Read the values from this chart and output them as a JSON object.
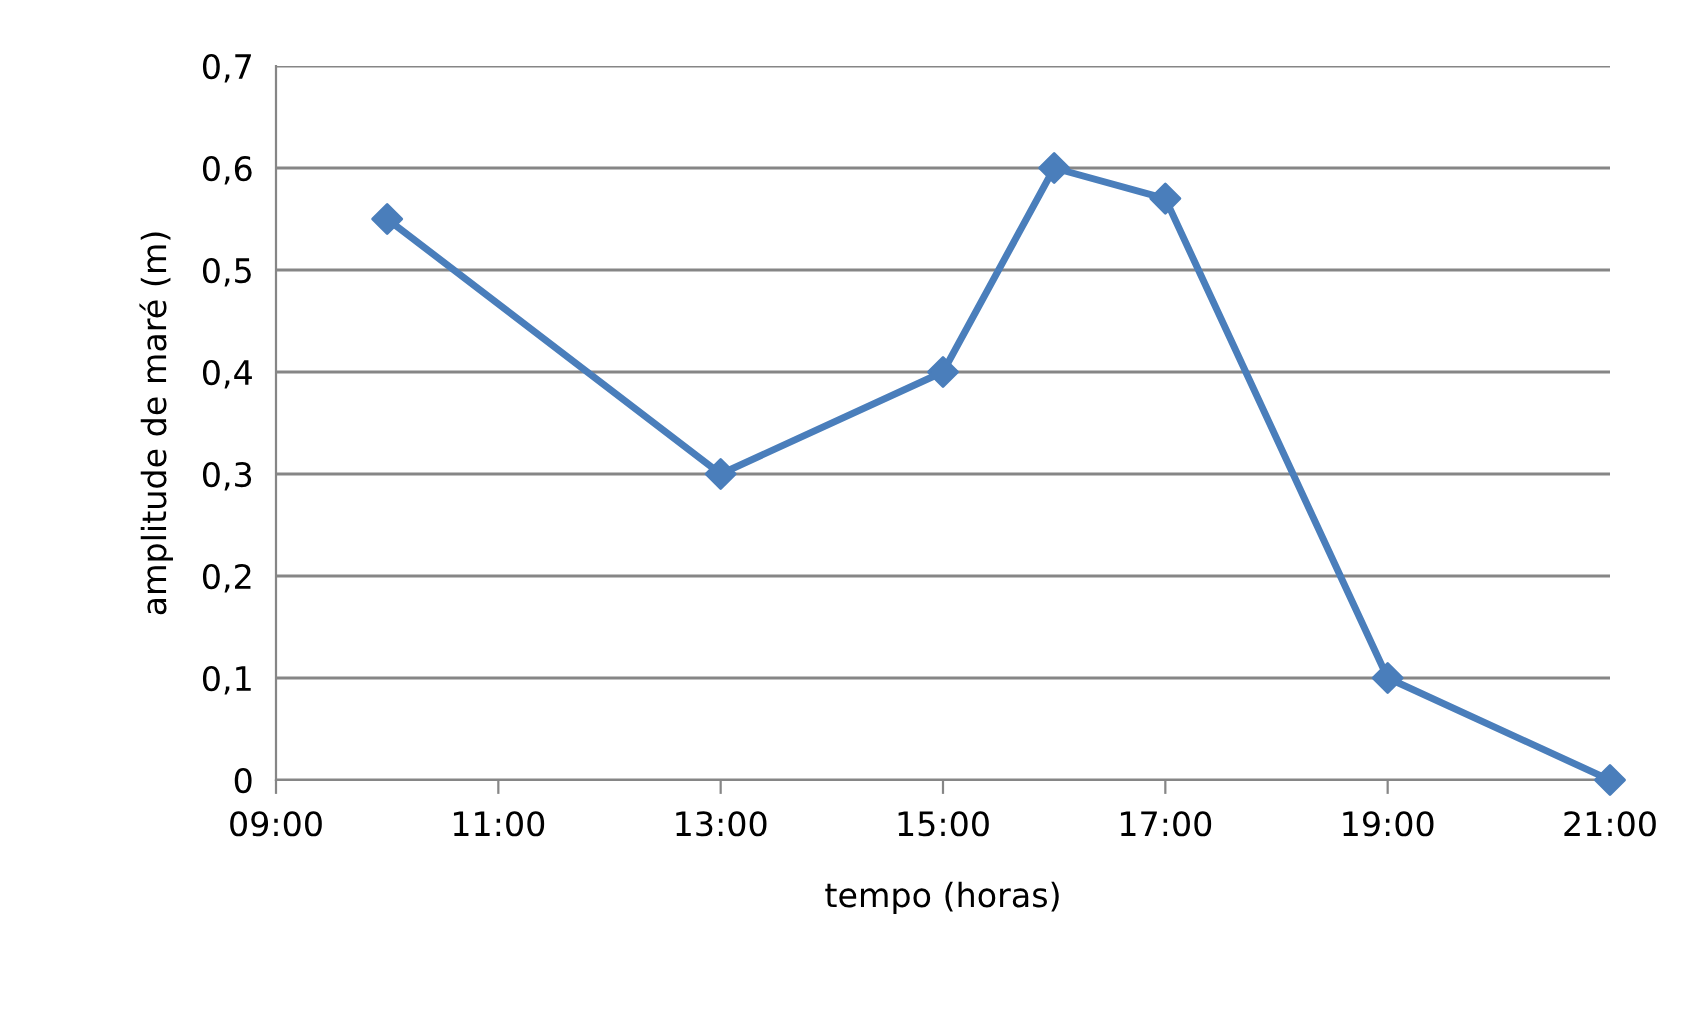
{
  "chart_data": {
    "type": "line",
    "xlabel": "tempo (horas)",
    "ylabel": "amplitude de maré (m)",
    "x": [
      10,
      13,
      15,
      16,
      17,
      19,
      21
    ],
    "series": [
      {
        "color": "#4a7ebb",
        "values": [
          0.55,
          0.3,
          0.4,
          0.6,
          0.57,
          0.1,
          0.0
        ]
      }
    ],
    "xlim": [
      9,
      21
    ],
    "xticks": [
      {
        "value": 9,
        "label": "09:00"
      },
      {
        "value": 11,
        "label": "11:00"
      },
      {
        "value": 13,
        "label": "13:00"
      },
      {
        "value": 15,
        "label": "15:00"
      },
      {
        "value": 17,
        "label": "17:00"
      },
      {
        "value": 19,
        "label": "19:00"
      },
      {
        "value": 21,
        "label": "21:00"
      }
    ],
    "ylim": [
      0,
      0.7
    ],
    "yticks": [
      {
        "value": 0,
        "label": "0"
      },
      {
        "value": 0.1,
        "label": "0,1"
      },
      {
        "value": 0.2,
        "label": "0,2"
      },
      {
        "value": 0.3,
        "label": "0,3"
      },
      {
        "value": 0.4,
        "label": "0,4"
      },
      {
        "value": 0.5,
        "label": "0,5"
      },
      {
        "value": 0.6,
        "label": "0,6"
      },
      {
        "value": 0.7,
        "label": "0,7"
      }
    ],
    "grid": "y",
    "marker": "diamond",
    "line_style": "solid",
    "legend": false
  }
}
